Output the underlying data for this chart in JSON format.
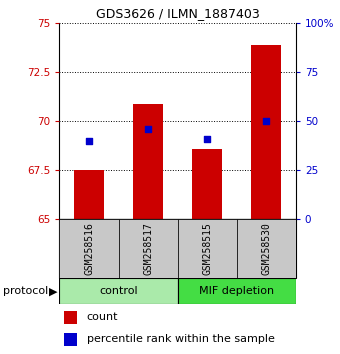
{
  "title": "GDS3626 / ILMN_1887403",
  "samples": [
    "GSM258516",
    "GSM258517",
    "GSM258515",
    "GSM258530"
  ],
  "count_values": [
    67.5,
    70.9,
    68.6,
    73.9
  ],
  "percentile_values": [
    40,
    46,
    41,
    50
  ],
  "ylim_left": [
    65,
    75
  ],
  "ylim_right": [
    0,
    100
  ],
  "yticks_left": [
    65,
    67.5,
    70,
    72.5,
    75
  ],
  "yticks_right": [
    0,
    25,
    50,
    75,
    100
  ],
  "ytick_labels_left": [
    "65",
    "67.5",
    "70",
    "72.5",
    "75"
  ],
  "ytick_labels_right": [
    "0",
    "25",
    "50",
    "75",
    "100%"
  ],
  "bar_color": "#CC0000",
  "dot_color": "#0000CC",
  "bar_width": 0.5,
  "dot_size": 25,
  "label_box_color": "#C8C8C8",
  "control_color": "#AAEAAA",
  "mif_color": "#44DD44",
  "protocol_label": "protocol",
  "legend_count": "count",
  "legend_percentile": "percentile rank within the sample",
  "title_fontsize": 9,
  "tick_fontsize": 7.5,
  "label_fontsize": 7,
  "proto_fontsize": 8,
  "legend_fontsize": 8
}
